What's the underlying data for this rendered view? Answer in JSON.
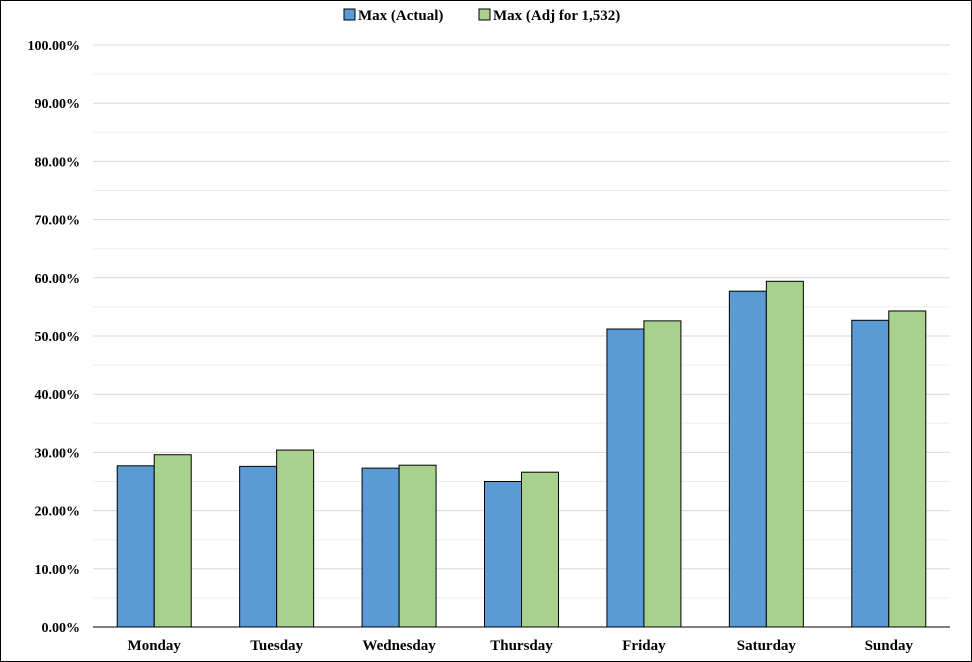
{
  "chart_data": {
    "type": "bar",
    "categories": [
      "Monday",
      "Tuesday",
      "Wednesday",
      "Thursday",
      "Friday",
      "Saturday",
      "Sunday"
    ],
    "series": [
      {
        "name": "Max (Actual)",
        "color": "#5b9bd5",
        "values": [
          27.7,
          27.6,
          27.3,
          25.0,
          51.2,
          57.7,
          52.7
        ]
      },
      {
        "name": "Max (Adj for 1,532)",
        "color": "#a9d18e",
        "values": [
          29.6,
          30.4,
          27.8,
          26.6,
          52.6,
          59.4,
          54.3
        ]
      }
    ],
    "y_ticks": [
      "0.00%",
      "10.00%",
      "20.00%",
      "30.00%",
      "40.00%",
      "50.00%",
      "60.00%",
      "70.00%",
      "80.00%",
      "90.00%",
      "100.00%"
    ],
    "ylim": [
      0,
      100
    ],
    "grid": true,
    "minor_grid": true,
    "legend_position": "top-center"
  }
}
